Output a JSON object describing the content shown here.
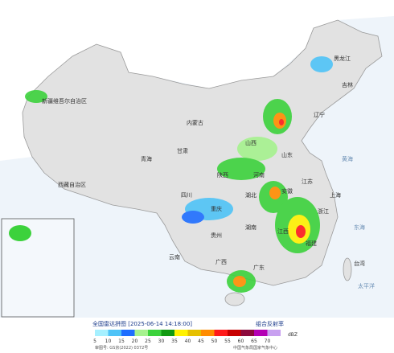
{
  "header": {
    "title": "全国雷达拼图 [2025-06-14 14:18:00]",
    "product": "组合反射率"
  },
  "legend": {
    "unit": "dBZ",
    "items": [
      {
        "value": 5,
        "color": "#a6f0ff"
      },
      {
        "value": 10,
        "color": "#4fc3f7"
      },
      {
        "value": 15,
        "color": "#1e6eff"
      },
      {
        "value": 20,
        "color": "#a6f28e"
      },
      {
        "value": 25,
        "color": "#3cd23c"
      },
      {
        "value": 30,
        "color": "#119a11"
      },
      {
        "value": 35,
        "color": "#fff200"
      },
      {
        "value": 40,
        "color": "#e6c000"
      },
      {
        "value": 45,
        "color": "#ff8c00"
      },
      {
        "value": 50,
        "color": "#ff1a1a"
      },
      {
        "value": 55,
        "color": "#c80000"
      },
      {
        "value": 60,
        "color": "#8c0a3c"
      },
      {
        "value": 65,
        "color": "#b400b4"
      },
      {
        "value": 70,
        "color": "#c8a0f0"
      }
    ]
  },
  "map": {
    "labels": [
      "新疆维吾尔自治区",
      "西藏自治区",
      "青海",
      "内蒙古",
      "黑龙江",
      "吉林",
      "辽宁",
      "山西",
      "山东",
      "河南",
      "江苏",
      "安徽",
      "湖北",
      "四川",
      "重庆",
      "贵州",
      "云南",
      "广西",
      "广东",
      "湖南",
      "江西",
      "浙江",
      "福建",
      "甘肃",
      "陕西",
      "黄海",
      "东海",
      "太平洋",
      "台湾",
      "上海"
    ]
  },
  "footer": {
    "approval": "审图号: GS京(2022) 0372号",
    "source": "中国气象局国家气象中心"
  }
}
